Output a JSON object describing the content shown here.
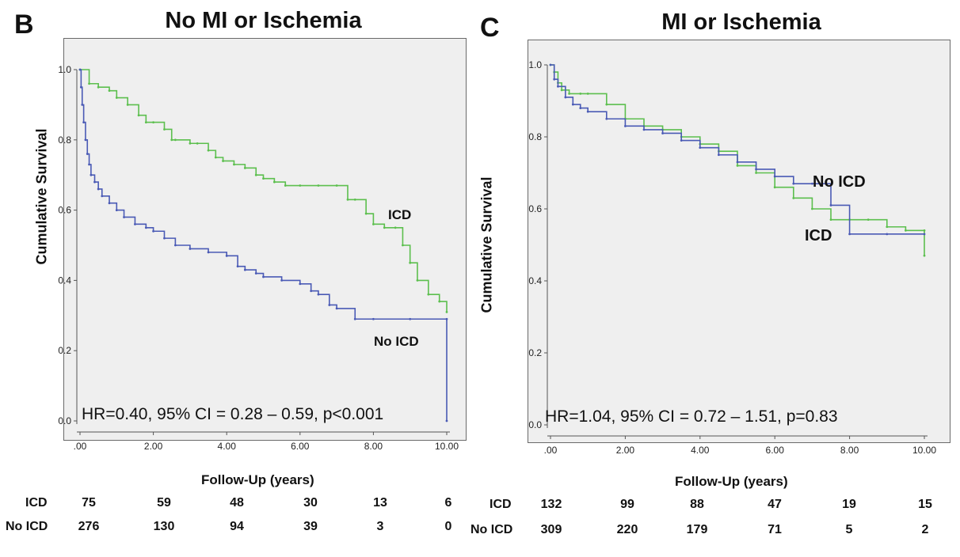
{
  "panels": [
    {
      "letter": "B",
      "title": "No MI or Ischemia",
      "hr_text": "HR=0.40, 95% CI = 0.28 – 0.59, p<0.001",
      "risk": {
        "icd_label": "ICD",
        "noicd_label": "No ICD",
        "icd": [
          "75",
          "59",
          "48",
          "30",
          "13",
          "6"
        ],
        "noicd": [
          "276",
          "130",
          "94",
          "39",
          "3",
          "0"
        ]
      }
    },
    {
      "letter": "C",
      "title": "MI or Ischemia",
      "hr_text": "HR=1.04, 95% CI = 0.72 – 1.51, p=0.83",
      "risk": {
        "icd_label": "ICD",
        "noicd_label": "No ICD",
        "icd": [
          "132",
          "99",
          "88",
          "47",
          "19",
          "15"
        ],
        "noicd": [
          "309",
          "220",
          "179",
          "71",
          "5",
          "2"
        ]
      }
    }
  ],
  "colors": {
    "icd": "#5cbf4e",
    "noicd": "#4a5ab5",
    "plot_bg": "#efefef"
  },
  "chart_data": [
    {
      "type": "line",
      "title": "No MI or Ischemia",
      "xlabel": "Follow-Up (years)",
      "ylabel": "Cumulative Survival",
      "xlim": [
        0,
        10
      ],
      "ylim": [
        0,
        1
      ],
      "xticks": [
        ".00",
        "2.00",
        "4.00",
        "6.00",
        "8.00",
        "10.00"
      ],
      "yticks": [
        "0.0",
        "0.2",
        "0.4",
        "0.6",
        "0.8",
        "1.0"
      ],
      "grid": false,
      "series": [
        {
          "name": "ICD",
          "color": "#5cbf4e",
          "x": [
            0,
            0.25,
            0.5,
            0.8,
            1.0,
            1.3,
            1.6,
            1.8,
            2.0,
            2.3,
            2.5,
            2.6,
            3.0,
            3.2,
            3.5,
            3.7,
            3.9,
            4.2,
            4.5,
            4.8,
            5.0,
            5.3,
            5.6,
            6.0,
            6.5,
            7.0,
            7.3,
            7.5,
            7.8,
            8.0,
            8.3,
            8.6,
            8.8,
            9.0,
            9.2,
            9.5,
            9.8,
            10.0
          ],
          "y": [
            1.0,
            0.96,
            0.95,
            0.94,
            0.92,
            0.9,
            0.87,
            0.85,
            0.85,
            0.83,
            0.8,
            0.8,
            0.79,
            0.79,
            0.77,
            0.75,
            0.74,
            0.73,
            0.72,
            0.7,
            0.69,
            0.68,
            0.67,
            0.67,
            0.67,
            0.67,
            0.63,
            0.63,
            0.59,
            0.56,
            0.55,
            0.55,
            0.5,
            0.45,
            0.4,
            0.36,
            0.34,
            0.31
          ]
        },
        {
          "name": "No ICD",
          "color": "#4a5ab5",
          "x": [
            0,
            0.03,
            0.06,
            0.1,
            0.15,
            0.2,
            0.25,
            0.3,
            0.4,
            0.5,
            0.6,
            0.8,
            1.0,
            1.2,
            1.5,
            1.8,
            2.0,
            2.3,
            2.6,
            3.0,
            3.5,
            4.0,
            4.3,
            4.5,
            4.8,
            5.0,
            5.5,
            6.0,
            6.3,
            6.5,
            6.8,
            7.0,
            7.5,
            8.0,
            9.0,
            10.0,
            10.0
          ],
          "y": [
            1.0,
            0.95,
            0.9,
            0.85,
            0.8,
            0.76,
            0.73,
            0.7,
            0.68,
            0.66,
            0.64,
            0.62,
            0.6,
            0.58,
            0.56,
            0.55,
            0.54,
            0.52,
            0.5,
            0.49,
            0.48,
            0.47,
            0.44,
            0.43,
            0.42,
            0.41,
            0.4,
            0.39,
            0.37,
            0.36,
            0.33,
            0.32,
            0.29,
            0.29,
            0.29,
            0.29,
            0.0
          ]
        }
      ],
      "annotations": [
        "ICD",
        "No ICD",
        "HR=0.40, 95% CI = 0.28 – 0.59, p<0.001"
      ]
    },
    {
      "type": "line",
      "title": "MI or Ischemia",
      "xlabel": "Follow-Up (years)",
      "ylabel": "Cumulative Survival",
      "xlim": [
        0,
        10
      ],
      "ylim": [
        0,
        1
      ],
      "xticks": [
        ".00",
        "2.00",
        "4.00",
        "6.00",
        "8.00",
        "10.00"
      ],
      "yticks": [
        "0.0",
        "0.2",
        "0.4",
        "0.6",
        "0.8",
        "1.0"
      ],
      "grid": false,
      "series": [
        {
          "name": "ICD",
          "color": "#5cbf4e",
          "x": [
            0,
            0.1,
            0.2,
            0.3,
            0.5,
            0.8,
            1.0,
            1.5,
            2.0,
            2.5,
            3.0,
            3.5,
            4.0,
            4.5,
            5.0,
            5.5,
            6.0,
            6.5,
            7.0,
            7.5,
            8.0,
            8.5,
            9.0,
            9.5,
            10.0,
            10.0
          ],
          "y": [
            1.0,
            0.98,
            0.95,
            0.93,
            0.92,
            0.92,
            0.92,
            0.89,
            0.85,
            0.83,
            0.82,
            0.8,
            0.78,
            0.76,
            0.72,
            0.7,
            0.66,
            0.63,
            0.6,
            0.57,
            0.57,
            0.57,
            0.55,
            0.54,
            0.54,
            0.47
          ]
        },
        {
          "name": "No ICD",
          "color": "#4a5ab5",
          "x": [
            0,
            0.1,
            0.2,
            0.4,
            0.6,
            0.8,
            1.0,
            1.5,
            2.0,
            2.5,
            3.0,
            3.5,
            4.0,
            4.5,
            5.0,
            5.5,
            6.0,
            6.5,
            7.0,
            7.5,
            8.0,
            9.0,
            10.0
          ],
          "y": [
            1.0,
            0.96,
            0.94,
            0.91,
            0.89,
            0.88,
            0.87,
            0.85,
            0.83,
            0.82,
            0.81,
            0.79,
            0.77,
            0.75,
            0.73,
            0.71,
            0.69,
            0.67,
            0.67,
            0.61,
            0.53,
            0.53,
            0.53
          ]
        }
      ],
      "annotations": [
        "No ICD",
        "ICD",
        "HR=1.04, 95% CI = 0.72 – 1.51, p=0.83"
      ]
    }
  ]
}
